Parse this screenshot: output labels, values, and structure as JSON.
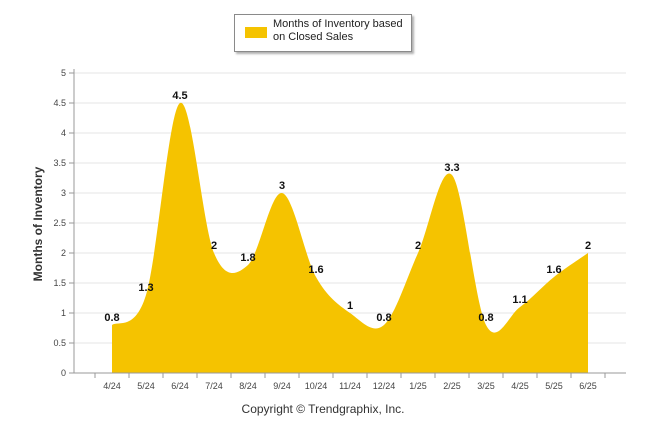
{
  "chart_data": {
    "type": "area",
    "legend": {
      "label": "Months of Inventory based on Closed Sales",
      "color": "#F5C300"
    },
    "ylabel": "Months of Inventory",
    "ylim": [
      0,
      5
    ],
    "yticks": [
      "0",
      "0.5",
      "1",
      "1.5",
      "2",
      "2.5",
      "3",
      "3.5",
      "4",
      "4.5",
      "5"
    ],
    "grid": true,
    "categories": [
      "4/24",
      "5/24",
      "6/24",
      "7/24",
      "8/24",
      "9/24",
      "10/24",
      "11/24",
      "12/24",
      "1/25",
      "2/25",
      "3/25",
      "4/25",
      "5/25",
      "6/25"
    ],
    "series": [
      {
        "name": "Months of Inventory based on Closed Sales",
        "values": [
          0.8,
          1.3,
          4.5,
          2,
          1.8,
          3,
          1.6,
          1,
          0.8,
          2,
          3.3,
          0.8,
          1.1,
          1.6,
          2
        ],
        "labels": [
          "0.8",
          "1.3",
          "4.5",
          "2",
          "1.8",
          "3",
          "1.6",
          "1",
          "0.8",
          "2",
          "3.3",
          "0.8",
          "1.1",
          "1.6",
          "2"
        ],
        "color": "#F5C300"
      }
    ]
  },
  "footer": "Copyright © Trendgraphix, Inc."
}
